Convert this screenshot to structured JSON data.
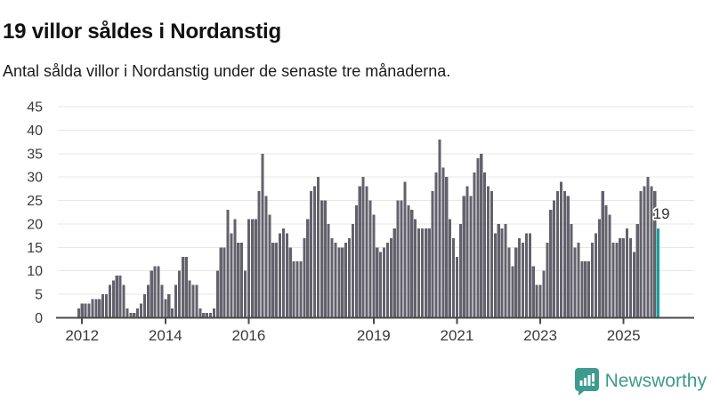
{
  "header": {
    "title": "19 villor såldes i Nordanstig",
    "subtitle": "Antal sålda villor i Nordanstig under de senaste tre månaderna."
  },
  "chart_data": {
    "type": "bar",
    "title": "19 villor såldes i Nordanstig",
    "subtitle": "Antal sålda villor i Nordanstig under de senaste tre månaderna.",
    "x_start": "2011-12",
    "x_end": "2025-11",
    "values": [
      2,
      3,
      3,
      3,
      4,
      4,
      4,
      5,
      5,
      7,
      8,
      9,
      9,
      7,
      2,
      1,
      1,
      2,
      3,
      5,
      7,
      10,
      11,
      11,
      7,
      4,
      5,
      2,
      7,
      10,
      13,
      13,
      8,
      7,
      7,
      2,
      1,
      1,
      1,
      2,
      10,
      15,
      15,
      23,
      18,
      21,
      16,
      16,
      10,
      21,
      21,
      21,
      27,
      35,
      26,
      22,
      16,
      16,
      18,
      19,
      18,
      15,
      12,
      12,
      12,
      17,
      21,
      27,
      28,
      30,
      25,
      25,
      20,
      17,
      16,
      15,
      15,
      16,
      17,
      20,
      24,
      28,
      30,
      28,
      25,
      22,
      15,
      14,
      15,
      16,
      17,
      19,
      25,
      25,
      29,
      24,
      23,
      21,
      19,
      19,
      19,
      19,
      27,
      31,
      38,
      32,
      30,
      21,
      17,
      13,
      20,
      26,
      28,
      26,
      31,
      34,
      35,
      31,
      28,
      27,
      18,
      20,
      19,
      20,
      15,
      11,
      15,
      17,
      16,
      18,
      18,
      11,
      7,
      7,
      10,
      16,
      23,
      25,
      27,
      29,
      27,
      26,
      20,
      15,
      16,
      12,
      12,
      12,
      16,
      18,
      21,
      27,
      24,
      22,
      16,
      16,
      17,
      17,
      19,
      17,
      14,
      20,
      27,
      28,
      30,
      28,
      27,
      19
    ],
    "highlight": {
      "index": 167,
      "value": 19,
      "label": "19"
    },
    "y_ticks": [
      0,
      5,
      10,
      15,
      20,
      25,
      30,
      35,
      40,
      45
    ],
    "ylim": [
      0,
      45
    ],
    "x_tick_years": [
      2012,
      2014,
      2016,
      2019,
      2021,
      2023,
      2025
    ],
    "grid": true,
    "legend": "none",
    "colors": {
      "bar": "#63626c",
      "highlight": "#0da3a1",
      "gridline": "#e7e7e7",
      "axis_line": "#4a4a4a",
      "tick_text": "#3a3a3a",
      "annotation_text": "#333333"
    }
  },
  "footer": {
    "brand": "Newsworthy",
    "brand_color": "#3d9b8f",
    "icon": "newsworthy-bubble-bars-icon"
  }
}
